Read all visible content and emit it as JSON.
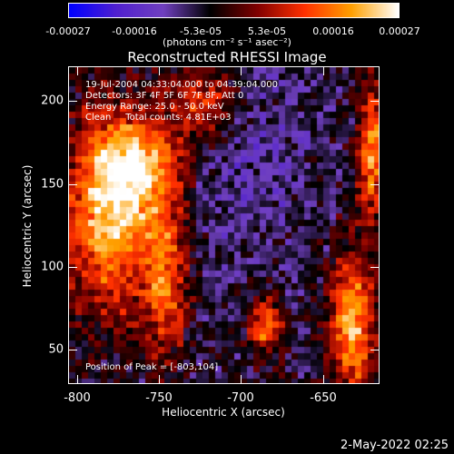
{
  "colorbar": {
    "ticks": [
      "-0.00027",
      "-0.00016",
      "-5.3e-05",
      "5.3e-05",
      "0.00016",
      "0.00027"
    ],
    "units": "(photons cm⁻² s⁻¹ asec⁻²)",
    "colors": [
      "#0000ff",
      "#5020d0",
      "#7040c0",
      "#000000",
      "#800000",
      "#ff3000",
      "#ffa000",
      "#ffffff"
    ]
  },
  "plot": {
    "title": "Reconstructed RHESSI Image",
    "annotations": [
      "19-Jul-2004 04:33:04.000 to 04:39:04.000",
      "Detectors: 3F 4F 5F 6F 7F 8F, Att 0",
      "Energy Range: 25.0 - 50.0 keV",
      "Clean     Total counts: 4.81E+03"
    ],
    "peak_label": "Position of Peak = [-803,104]",
    "xlabel": "Heliocentric X (arcsec)",
    "ylabel": "Heliocentric Y (arcsec)",
    "xticks": [
      "-800",
      "-750",
      "-700",
      "-650"
    ],
    "yticks": [
      "50",
      "100",
      "150",
      "200"
    ]
  },
  "chart_data": {
    "type": "heatmap",
    "title": "Reconstructed RHESSI Image",
    "xlabel": "Heliocentric X (arcsec)",
    "ylabel": "Heliocentric Y (arcsec)",
    "xlim": [
      -807,
      -612
    ],
    "ylim": [
      30,
      222
    ],
    "zlim": [
      -0.00027,
      0.00027
    ],
    "colorbar_label": "(photons cm⁻² s⁻¹ asec⁻²)"
  },
  "footer": {
    "date": "2-May-2022 02:25"
  }
}
